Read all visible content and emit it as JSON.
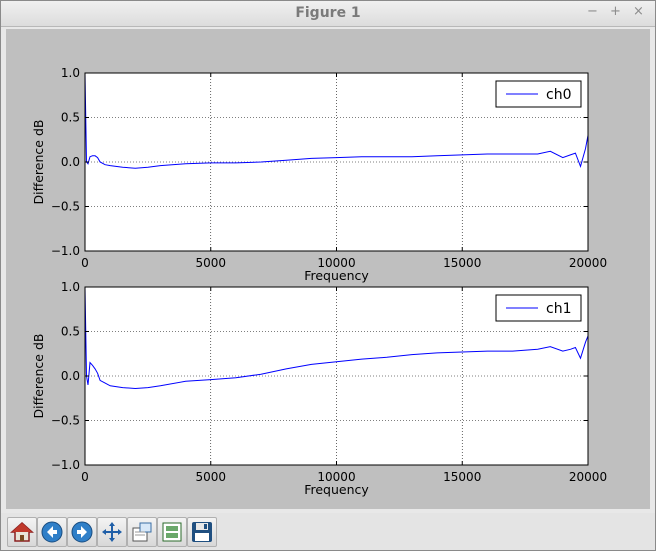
{
  "window": {
    "title": "Figure 1",
    "controls": {
      "minimize": "−",
      "maximize": "+",
      "close": "×"
    }
  },
  "toolbar": {
    "buttons": [
      {
        "name": "home-button",
        "icon": "home-icon"
      },
      {
        "name": "back-button",
        "icon": "arrow-left-icon"
      },
      {
        "name": "forward-button",
        "icon": "arrow-right-icon"
      },
      {
        "name": "pan-button",
        "icon": "move-arrows-icon"
      },
      {
        "name": "zoom-button",
        "icon": "zoom-rect-icon"
      },
      {
        "name": "subplots-button",
        "icon": "subplots-icon"
      },
      {
        "name": "save-button",
        "icon": "floppy-disk-icon"
      }
    ]
  },
  "chart_data": [
    {
      "type": "line",
      "xlabel": "Frequency",
      "ylabel": "Difference dB",
      "xlim": [
        0,
        20000
      ],
      "ylim": [
        -1.0,
        1.0
      ],
      "xticks": [
        "0",
        "5000",
        "10000",
        "15000",
        "20000"
      ],
      "xtick_values": [
        0,
        5000,
        10000,
        15000,
        20000
      ],
      "yticks": [
        "1.0",
        "0.5",
        "0.0",
        "−0.5",
        "−1.0"
      ],
      "ytick_values": [
        1.0,
        0.5,
        0.0,
        -0.5,
        -1.0
      ],
      "grid": true,
      "legend_position": "top-right",
      "color": "#0000ff",
      "series": [
        {
          "name": "ch0",
          "x": [
            0,
            60,
            120,
            200,
            300,
            400,
            500,
            600,
            800,
            1000,
            1500,
            2000,
            2500,
            3000,
            4000,
            5000,
            6000,
            7000,
            8000,
            9000,
            10000,
            11000,
            12000,
            13000,
            14000,
            15000,
            16000,
            17000,
            18000,
            18500,
            19000,
            19300,
            19500,
            19700,
            19900,
            20000
          ],
          "y": [
            1.0,
            0.0,
            -0.02,
            0.06,
            0.07,
            0.07,
            0.05,
            0.0,
            -0.03,
            -0.04,
            -0.06,
            -0.07,
            -0.06,
            -0.04,
            -0.02,
            -0.01,
            -0.01,
            0.0,
            0.02,
            0.04,
            0.05,
            0.06,
            0.06,
            0.06,
            0.07,
            0.08,
            0.09,
            0.09,
            0.09,
            0.12,
            0.05,
            0.08,
            0.1,
            -0.05,
            0.15,
            0.3
          ]
        }
      ]
    },
    {
      "type": "line",
      "xlabel": "Frequency",
      "ylabel": "Difference dB",
      "xlim": [
        0,
        20000
      ],
      "ylim": [
        -1.0,
        1.0
      ],
      "xticks": [
        "0",
        "5000",
        "10000",
        "15000",
        "20000"
      ],
      "xtick_values": [
        0,
        5000,
        10000,
        15000,
        20000
      ],
      "yticks": [
        "1.0",
        "0.5",
        "0.0",
        "−0.5",
        "−1.0"
      ],
      "ytick_values": [
        1.0,
        0.5,
        0.0,
        -0.5,
        -1.0
      ],
      "grid": true,
      "legend_position": "top-right",
      "color": "#0000ff",
      "series": [
        {
          "name": "ch1",
          "x": [
            0,
            60,
            120,
            200,
            300,
            400,
            500,
            600,
            800,
            1000,
            1500,
            2000,
            2500,
            3000,
            4000,
            5000,
            6000,
            7000,
            8000,
            9000,
            10000,
            11000,
            12000,
            13000,
            14000,
            15000,
            16000,
            17000,
            18000,
            18500,
            19000,
            19300,
            19500,
            19700,
            19900,
            20000
          ],
          "y": [
            1.0,
            0.0,
            -0.1,
            0.15,
            0.12,
            0.08,
            0.03,
            -0.05,
            -0.08,
            -0.11,
            -0.13,
            -0.14,
            -0.13,
            -0.11,
            -0.06,
            -0.04,
            -0.02,
            0.02,
            0.08,
            0.13,
            0.16,
            0.19,
            0.21,
            0.24,
            0.26,
            0.27,
            0.28,
            0.28,
            0.3,
            0.33,
            0.28,
            0.3,
            0.32,
            0.2,
            0.38,
            0.45
          ]
        }
      ]
    }
  ]
}
